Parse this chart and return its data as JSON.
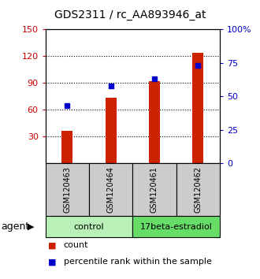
{
  "title": "GDS2311 / rc_AA893946_at",
  "samples": [
    "GSM120463",
    "GSM120464",
    "GSM120461",
    "GSM120462"
  ],
  "bar_values": [
    36,
    73,
    92,
    124
  ],
  "scatter_values_pct": [
    43,
    58,
    63,
    73
  ],
  "bar_color": "#cc2200",
  "scatter_color": "#0000cc",
  "ylim_left": [
    0,
    150
  ],
  "ylim_right": [
    0,
    100
  ],
  "yticks_left": [
    30,
    60,
    90,
    120,
    150
  ],
  "yticks_right": [
    0,
    25,
    50,
    75,
    100
  ],
  "ytick_right_labels": [
    "0",
    "25",
    "50",
    "75",
    "100%"
  ],
  "groups": [
    {
      "label": "control",
      "indices": [
        0,
        1
      ],
      "color": "#b8f0b8"
    },
    {
      "label": "17beta-estradiol",
      "indices": [
        2,
        3
      ],
      "color": "#66dd66"
    }
  ],
  "agent_label": "agent",
  "legend_count": "count",
  "legend_percentile": "percentile rank within the sample",
  "sample_box_color": "#cccccc",
  "left_label_color": "#cc0000",
  "right_label_color": "#0000cc",
  "title_fontsize": 10,
  "tick_fontsize": 8,
  "sample_fontsize": 7,
  "group_fontsize": 8,
  "legend_fontsize": 8
}
